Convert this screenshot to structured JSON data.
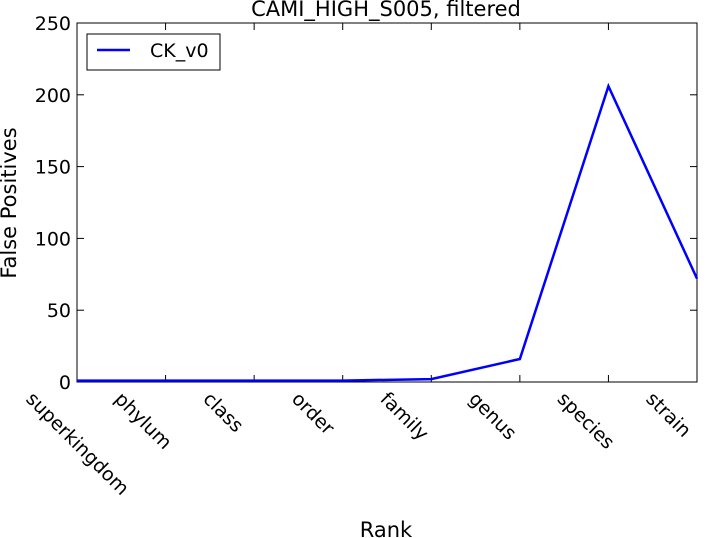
{
  "chart_data": {
    "type": "line",
    "title": "CAMI_HIGH_S005, filtered",
    "xlabel": "Rank",
    "ylabel": "False Positives",
    "categories": [
      "superkingdom",
      "phylum",
      "class",
      "order",
      "family",
      "genus",
      "species",
      "strain"
    ],
    "ylim": [
      0,
      250
    ],
    "yticks": [
      0,
      50,
      100,
      150,
      200,
      250
    ],
    "series": [
      {
        "name": "CK_v0",
        "color": "#0000ff",
        "values": [
          1,
          1,
          1,
          1,
          2,
          16,
          206,
          72
        ]
      }
    ],
    "legend": "top-left",
    "grid": false
  }
}
